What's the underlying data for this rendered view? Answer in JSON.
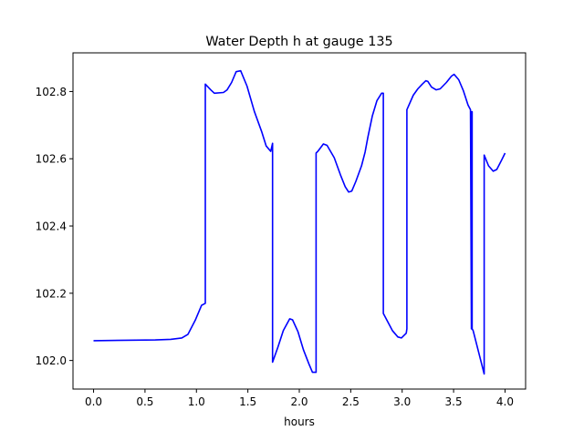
{
  "chart_data": {
    "type": "line",
    "title": "Water Depth h at gauge 135",
    "xlabel": "hours",
    "ylabel": "",
    "xlim": [
      -0.2,
      4.2
    ],
    "ylim": [
      101.915,
      102.915
    ],
    "xticks": [
      0.0,
      0.5,
      1.0,
      1.5,
      2.0,
      2.5,
      3.0,
      3.5,
      4.0
    ],
    "xtick_labels": [
      "0.0",
      "0.5",
      "1.0",
      "1.5",
      "2.0",
      "2.5",
      "3.0",
      "3.5",
      "4.0"
    ],
    "yticks": [
      102.0,
      102.2,
      102.4,
      102.6,
      102.8
    ],
    "ytick_labels": [
      "102.0",
      "102.2",
      "102.4",
      "102.6",
      "102.8"
    ],
    "grid": false,
    "series": [
      {
        "name": "h",
        "color": "#0000ff",
        "x": [
          0,
          0.6,
          0.75,
          0.857,
          0.918,
          0.989,
          1.05,
          1.086,
          1.086,
          1.139,
          1.174,
          1.263,
          1.298,
          1.342,
          1.386,
          1.43,
          1.492,
          1.563,
          1.634,
          1.678,
          1.722,
          1.74,
          1.74,
          1.792,
          1.845,
          1.907,
          1.934,
          1.987,
          2.04,
          2.093,
          2.128,
          2.163,
          2.163,
          2.18,
          2.234,
          2.27,
          2.34,
          2.4,
          2.446,
          2.48,
          2.51,
          2.55,
          2.605,
          2.64,
          2.667,
          2.71,
          2.755,
          2.8,
          2.817,
          2.817,
          2.905,
          2.958,
          2.993,
          3.04,
          3.046,
          3.046,
          3.108,
          3.152,
          3.196,
          3.23,
          3.25,
          3.285,
          3.33,
          3.37,
          3.43,
          3.48,
          3.505,
          3.55,
          3.594,
          3.64,
          3.664,
          3.673,
          3.677,
          3.68,
          3.68,
          3.69,
          3.797,
          3.797,
          3.84,
          3.885,
          3.92,
          3.965,
          4.0
        ],
        "y": [
          102.059,
          102.061,
          102.063,
          102.067,
          102.078,
          102.12,
          102.164,
          102.17,
          102.822,
          102.805,
          102.795,
          102.797,
          102.805,
          102.827,
          102.859,
          102.862,
          102.816,
          102.741,
          102.681,
          102.638,
          102.622,
          102.646,
          101.995,
          102.04,
          102.089,
          102.124,
          102.121,
          102.086,
          102.032,
          101.99,
          101.965,
          101.965,
          102.617,
          102.622,
          102.644,
          102.64,
          102.603,
          102.552,
          102.517,
          102.501,
          102.504,
          102.533,
          102.579,
          102.62,
          102.665,
          102.727,
          102.773,
          102.795,
          102.795,
          102.14,
          102.089,
          102.07,
          102.067,
          102.081,
          102.094,
          102.746,
          102.789,
          102.808,
          102.822,
          102.832,
          102.83,
          102.813,
          102.805,
          102.808,
          102.827,
          102.846,
          102.851,
          102.835,
          102.803,
          102.76,
          102.746,
          102.094,
          102.74,
          102.74,
          102.094,
          102.089,
          101.96,
          102.611,
          102.579,
          102.563,
          102.568,
          102.595,
          102.617
        ]
      }
    ]
  }
}
